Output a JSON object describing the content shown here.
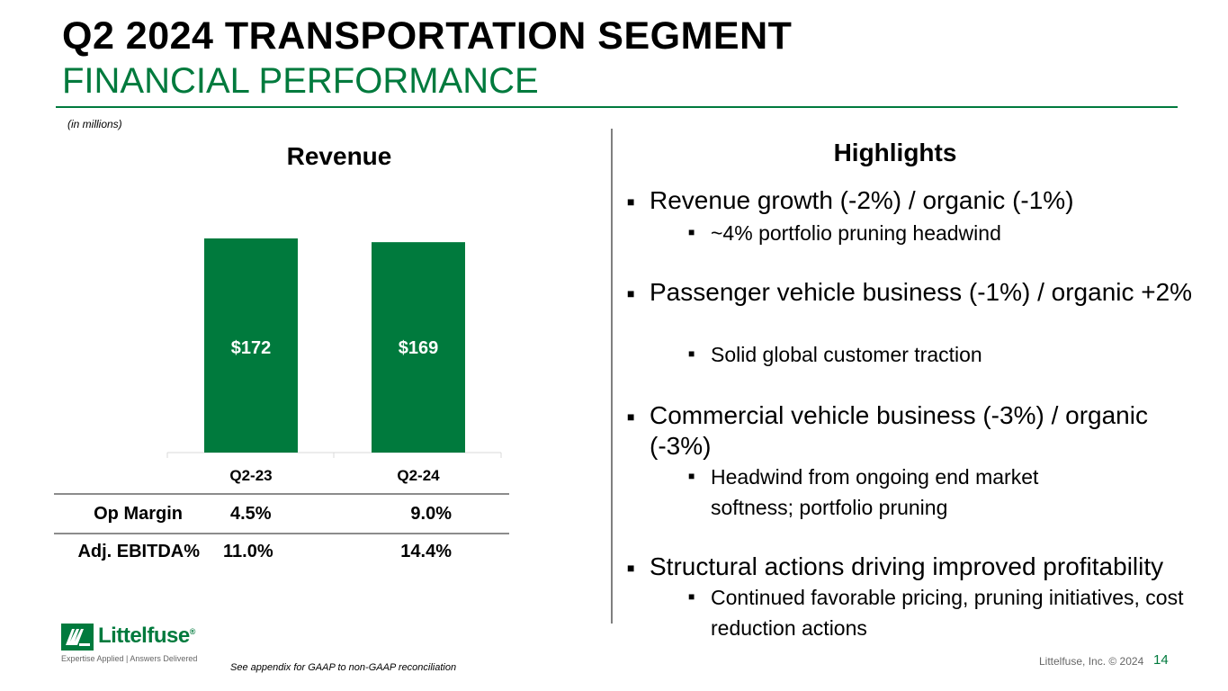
{
  "header": {
    "title": "Q2 2024 TRANSPORTATION SEGMENT",
    "subtitle": "FINANCIAL PERFORMANCE",
    "units_note": "(in millions)"
  },
  "revenue_heading": "Revenue",
  "chart_data": {
    "type": "bar",
    "title": "Revenue",
    "categories": [
      "Q2-23",
      "Q2-24"
    ],
    "values": [
      172,
      169
    ],
    "data_labels": [
      "$172",
      "$169"
    ],
    "ylim": [
      0,
      172
    ],
    "grid": false,
    "bar_color": "#007a3d",
    "label_color": "#ffffff"
  },
  "metrics": [
    {
      "label": "Op Margin",
      "q2_23": "4.5%",
      "q2_24": "9.0%"
    },
    {
      "label": "Adj. EBITDA%",
      "q2_23": "11.0%",
      "q2_24": "14.4%"
    }
  ],
  "highlights": {
    "heading": "Highlights",
    "bullet_glyph": "■",
    "items": [
      {
        "text": "Revenue growth (-2%) / organic (-1%)",
        "subs": [
          "~4% portfolio pruning headwind"
        ]
      },
      {
        "text": "Passenger vehicle business (-1%) / organic +2%",
        "subs": [
          "Solid global customer traction"
        ]
      },
      {
        "text": "Commercial vehicle business (-3%) / organic (-3%)",
        "subs": [
          "Headwind from ongoing end market softness; portfolio pruning"
        ]
      },
      {
        "text": "Structural actions driving improved profitability",
        "subs": [
          "Continued favorable pricing, pruning initiatives, cost reduction actions"
        ]
      }
    ]
  },
  "footer": {
    "logo_text": "Littelfuse",
    "logo_registered": "®",
    "logo_tagline": "Expertise Applied | Answers Delivered",
    "footnote": "See appendix for GAAP to non-GAAP reconciliation",
    "copyright": "Littelfuse, Inc. © 2024",
    "page_number": "14"
  },
  "colors": {
    "brand_green": "#007a3d",
    "text": "#000000",
    "rule_gray": "#8c8c8c"
  }
}
